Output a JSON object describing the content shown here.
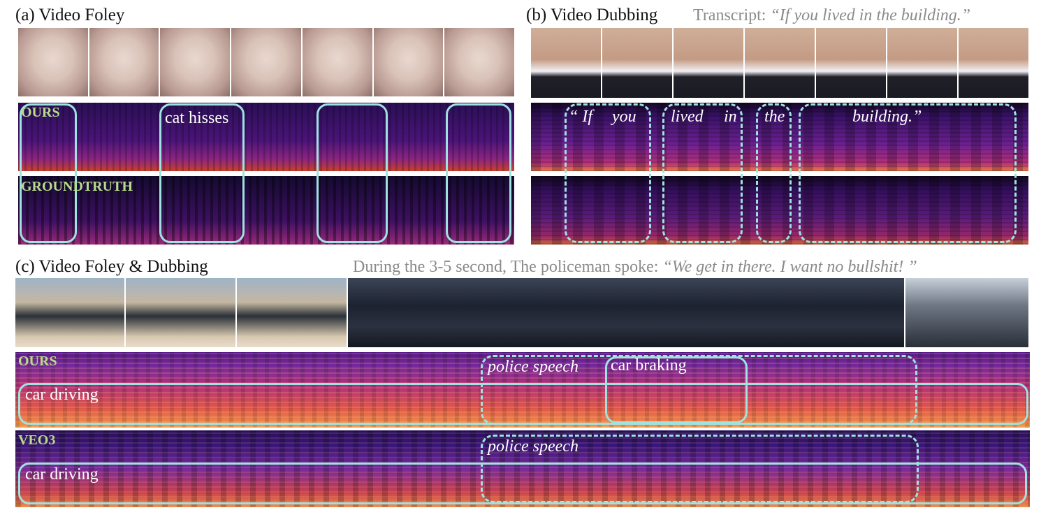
{
  "panel_a": {
    "title": "(a) Video Foley",
    "row_labels": [
      "OURS",
      "GROUNDTRUTH"
    ],
    "annotation": "cat hisses"
  },
  "panel_b": {
    "title": "(b) Video Dubbing",
    "transcript_label": "Transcript:",
    "transcript_text": "“If you lived in the building.”",
    "words": [
      "“ If",
      "you",
      "lived",
      "in",
      "the",
      "building.”"
    ]
  },
  "panel_c": {
    "title": "(c) Video Foley & Dubbing",
    "caption_prefix": "During the 3-5 second, The policeman spoke:",
    "caption_quote": "“We get in there. I want no bullshit! ”",
    "rows": [
      {
        "label": "OURS",
        "annotations": [
          "police speech",
          "car braking",
          "car driving"
        ]
      },
      {
        "label": "VEO3",
        "annotations": [
          "police speech",
          "car driving"
        ]
      }
    ]
  },
  "colors": {
    "box": "#9fe3e0",
    "row_label": "#b7dc8a",
    "caption": "#8a8a8a"
  }
}
